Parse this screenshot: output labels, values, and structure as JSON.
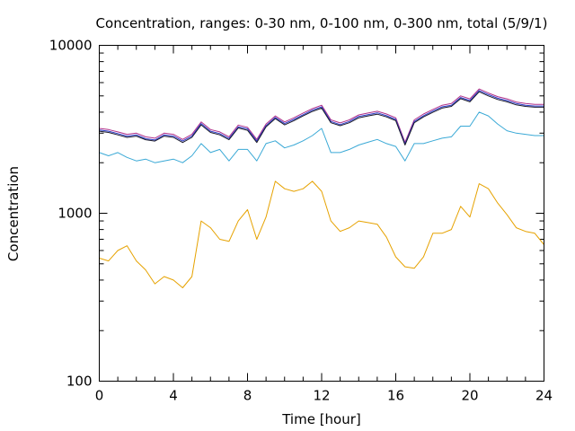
{
  "chart_data": {
    "type": "line",
    "title": "Concentration, ranges: 0-30 nm, 0-100 nm, 0-300 nm, total (5/9/1)",
    "xlabel": "Time [hour]",
    "ylabel": "Concentration",
    "xlim": [
      0,
      24
    ],
    "ylim": [
      100,
      10000
    ],
    "yscale": "log",
    "grid": false,
    "legend": "none",
    "x_ticks": [
      "0",
      "4",
      "8",
      "12",
      "16",
      "20",
      "24"
    ],
    "y_ticks": [
      "100",
      "1000",
      "10000"
    ],
    "x": [
      0,
      0.5,
      1,
      1.5,
      2,
      2.5,
      3,
      3.5,
      4,
      4.5,
      5,
      5.5,
      6,
      6.5,
      7,
      7.5,
      8,
      8.5,
      9,
      9.5,
      10,
      10.5,
      11,
      11.5,
      12,
      12.5,
      13,
      13.5,
      14,
      14.5,
      15,
      15.5,
      16,
      16.5,
      17,
      17.5,
      18,
      18.5,
      19,
      19.5,
      20,
      20.5,
      21,
      21.5,
      22,
      22.5,
      23,
      23.5,
      24
    ],
    "series": [
      {
        "color": "#e6a200",
        "values": [
          540,
          520,
          600,
          640,
          520,
          460,
          380,
          420,
          400,
          360,
          420,
          900,
          820,
          700,
          680,
          900,
          1050,
          700,
          950,
          1550,
          1400,
          1350,
          1400,
          1550,
          1350,
          900,
          780,
          820,
          900,
          880,
          860,
          720,
          550,
          480,
          470,
          550,
          760,
          760,
          800,
          1100,
          950,
          1500,
          1400,
          1150,
          980,
          820,
          780,
          760,
          650
        ]
      },
      {
        "color": "#3aa9d6",
        "values": [
          2300,
          2200,
          2300,
          2150,
          2050,
          2100,
          2000,
          2050,
          2100,
          2000,
          2200,
          2600,
          2300,
          2400,
          2050,
          2400,
          2400,
          2050,
          2600,
          2700,
          2450,
          2550,
          2700,
          2900,
          3200,
          2300,
          2300,
          2400,
          2550,
          2650,
          2750,
          2600,
          2500,
          2050,
          2600,
          2600,
          2700,
          2800,
          2850,
          3300,
          3300,
          4000,
          3800,
          3400,
          3100,
          3000,
          2950,
          2900,
          2900
        ]
      },
      {
        "color": "#b0308a",
        "values": [
          3200,
          3150,
          3050,
          2950,
          3000,
          2850,
          2800,
          3000,
          2950,
          2750,
          2950,
          3500,
          3150,
          3050,
          2850,
          3350,
          3250,
          2750,
          3400,
          3800,
          3500,
          3700,
          3950,
          4200,
          4400,
          3600,
          3450,
          3600,
          3850,
          3950,
          4050,
          3900,
          3700,
          2650,
          3600,
          3900,
          4150,
          4400,
          4500,
          5000,
          4800,
          5500,
          5200,
          4950,
          4800,
          4600,
          4500,
          4450,
          4450
        ]
      },
      {
        "color": "#2838c8",
        "values": [
          3130,
          3080,
          2980,
          2880,
          2930,
          2780,
          2730,
          2930,
          2880,
          2690,
          2880,
          3420,
          3080,
          2980,
          2790,
          3270,
          3180,
          2690,
          3320,
          3720,
          3420,
          3620,
          3860,
          4110,
          4300,
          3520,
          3370,
          3520,
          3770,
          3860,
          3960,
          3810,
          3620,
          2590,
          3520,
          3810,
          4060,
          4300,
          4400,
          4890,
          4690,
          5380,
          5090,
          4840,
          4690,
          4500,
          4400,
          4350,
          4350
        ]
      },
      {
        "color": "#1a1a2a",
        "values": [
          3080,
          3030,
          2930,
          2830,
          2880,
          2740,
          2690,
          2880,
          2830,
          2640,
          2830,
          3360,
          3030,
          2930,
          2740,
          3220,
          3120,
          2640,
          3270,
          3660,
          3360,
          3560,
          3800,
          4040,
          4230,
          3460,
          3320,
          3460,
          3700,
          3800,
          3890,
          3750,
          3560,
          2550,
          3460,
          3750,
          3990,
          4230,
          4330,
          4810,
          4610,
          5290,
          5000,
          4760,
          4610,
          4420,
          4330,
          4280,
          4280
        ]
      }
    ]
  }
}
